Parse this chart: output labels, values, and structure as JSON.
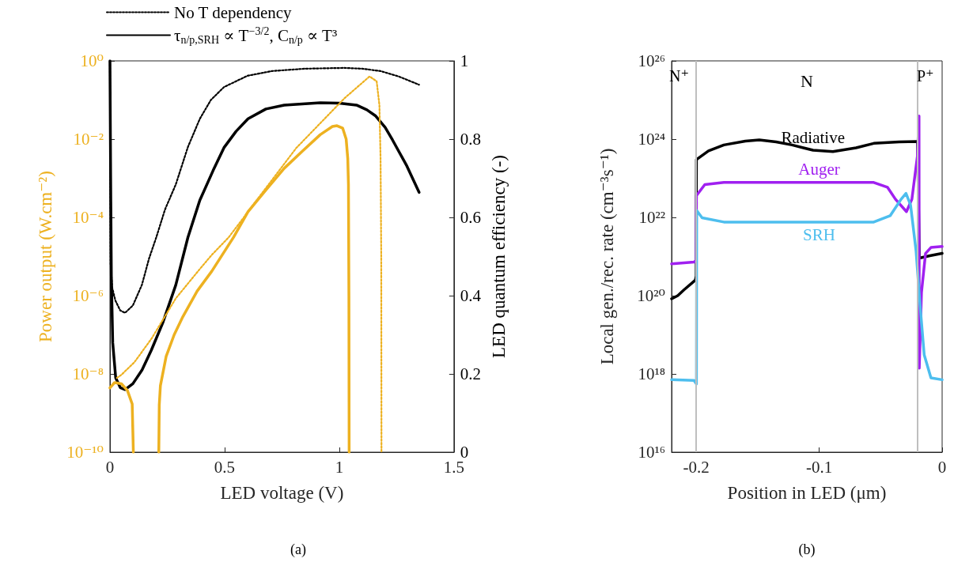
{
  "chart_data": [
    {
      "type": "line",
      "xlabel": "LED voltage (V)",
      "ylabel": "Power output (W.cm⁻²)",
      "y2label": "LED quantum efficiency (-)",
      "xlim": [
        0,
        1.5
      ],
      "xticks": [
        0,
        0.5,
        1,
        1.5
      ],
      "ylim": [
        1e-10,
        1
      ],
      "yticks": [
        {
          "value": 1e-10,
          "label": "10⁻¹⁰"
        },
        {
          "value": 1e-08,
          "label": "10⁻⁸"
        },
        {
          "value": 1e-06,
          "label": "10⁻⁶"
        },
        {
          "value": 0.0001,
          "label": "10⁻⁴"
        },
        {
          "value": 0.01,
          "label": "10⁻²"
        },
        {
          "value": 1,
          "label": "10⁰"
        }
      ],
      "log": "y",
      "y2lim": [
        0,
        1
      ],
      "y2ticks": [
        0,
        0.2,
        0.4,
        0.6,
        0.8,
        1
      ],
      "legend": "top left",
      "marker": "none",
      "annotations": [
        "(a)"
      ],
      "series": [
        {
          "name": "No T dependency",
          "color": "#000000",
          "axis": "y2",
          "line_style": "dotted",
          "x": [
            0,
            0.003,
            0.01,
            0.024,
            0.045,
            0.066,
            0.1,
            0.139,
            0.17,
            0.202,
            0.24,
            0.287,
            0.34,
            0.392,
            0.44,
            0.497,
            0.6,
            0.707,
            0.85,
            1.022,
            1.1,
            1.18,
            1.26,
            1.348
          ],
          "values": [
            1,
            0.48,
            0.42,
            0.387,
            0.362,
            0.356,
            0.375,
            0.427,
            0.494,
            0.549,
            0.62,
            0.684,
            0.78,
            0.852,
            0.9,
            0.933,
            0.962,
            0.974,
            0.98,
            0.982,
            0.98,
            0.974,
            0.96,
            0.939
          ]
        },
        {
          "name": "τ$_{n/p,SRH}$ ∝ T$^{−3/2}$, C$_{n/p}$ ∝ T³",
          "color": "#000000",
          "axis": "y2",
          "line_style": "solid",
          "x": [
            0,
            0.003,
            0.006,
            0.012,
            0.025,
            0.045,
            0.066,
            0.1,
            0.14,
            0.18,
            0.23,
            0.287,
            0.34,
            0.392,
            0.45,
            0.497,
            0.55,
            0.602,
            0.68,
            0.76,
            0.917,
            1.0,
            1.075,
            1.12,
            1.159,
            1.2,
            1.232,
            1.295,
            1.348
          ],
          "values": [
            1,
            0.7,
            0.45,
            0.28,
            0.19,
            0.165,
            0.16,
            0.175,
            0.21,
            0.26,
            0.33,
            0.427,
            0.549,
            0.644,
            0.72,
            0.778,
            0.82,
            0.852,
            0.877,
            0.887,
            0.893,
            0.892,
            0.887,
            0.875,
            0.859,
            0.83,
            0.798,
            0.731,
            0.664
          ]
        },
        {
          "color": "#edb120",
          "line_style": "solid",
          "x": [
            0,
            0.02,
            0.05,
            0.076,
            0.097,
            0.1,
            0.102,
            0.16,
            0.213,
            0.215,
            0.22,
            0.245,
            0.28,
            0.318,
            0.38,
            0.444,
            0.539,
            0.602,
            0.68,
            0.76,
            0.84,
            0.917,
            0.97,
            0.99,
            1.015,
            1.03,
            1.037,
            1.04,
            1.042,
            1.043
          ],
          "values": [
            4.4e-09,
            6e-09,
            5.6e-09,
            3.8e-09,
            1.7e-09,
            3.2e-10,
            1e-10,
            null,
            1e-10,
            1.6e-09,
            5e-09,
            2.8e-08,
            1e-07,
            2.9e-07,
            1.3e-06,
            4.2e-06,
            3.1e-05,
            0.00014,
            0.0005,
            0.0018,
            0.005,
            0.013,
            0.021,
            0.022,
            0.019,
            0.01,
            0.0032,
            0.00069,
            1e-06,
            1e-10
          ]
        },
        {
          "color": "#edb120",
          "line_style": "dotted",
          "x": [
            0.03,
            0.05,
            0.107,
            0.182,
            0.287,
            0.392,
            0.444,
            0.518,
            0.602,
            0.812,
            1.022,
            1.132,
            1.163,
            1.175,
            1.18,
            1.183,
            1.184
          ],
          "values": [
            7.9e-09,
            9.5e-09,
            2e-08,
            8.1e-08,
            8.5e-07,
            4.8e-06,
            1.1e-05,
            3.1e-05,
            0.00014,
            0.0059,
            0.11,
            0.4,
            0.3,
            0.074,
            0.0032,
            1e-05,
            1e-10
          ]
        }
      ]
    },
    {
      "type": "line",
      "xlabel": "Position in LED (μm)",
      "ylabel": "Local gen./rec. rate (cm⁻³s⁻¹)",
      "xlim": [
        -0.22,
        0
      ],
      "xticks": [
        -0.2,
        -0.1,
        0
      ],
      "ylim": [
        1e+16,
        1e+26
      ],
      "yticks": [
        {
          "value": 1e+16,
          "label": "10¹⁶"
        },
        {
          "value": 1e+18,
          "label": "10¹⁸"
        },
        {
          "value": 1e+20,
          "label": "10²⁰"
        },
        {
          "value": 1e+22,
          "label": "10²²"
        },
        {
          "value": 1e+24,
          "label": "10²⁴"
        },
        {
          "value": 1e+26,
          "label": "10²⁶"
        }
      ],
      "log": "y",
      "marker": "none",
      "ref_lines": [
        {
          "axis": "x",
          "value": -0.2,
          "label": "N⁺",
          "color": "#bfbfbf"
        },
        {
          "axis": "x",
          "value": -0.02,
          "label": "P⁺",
          "color": "#bfbfbf"
        }
      ],
      "annotations": [
        "N",
        "(b)"
      ],
      "series": [
        {
          "name": "Radiative",
          "color": "#000000",
          "line_style": "solid",
          "x": [
            -0.22,
            -0.215,
            -0.21,
            -0.2007,
            -0.2,
            -0.1998,
            -0.19,
            -0.1775,
            -0.16,
            -0.1487,
            -0.135,
            -0.122,
            -0.105,
            -0.0888,
            -0.07,
            -0.0556,
            -0.035,
            -0.02,
            -0.0185,
            -0.01,
            0
          ],
          "values": [
            8.3e+19,
            1e+20,
            1.4e+20,
            2.5e+20,
            3.2e+20,
            3e+23,
            5e+23,
            7.1e+23,
            8.9e+23,
            9.5e+23,
            8.5e+23,
            7.1e+23,
            5.2e+23,
            4.8e+23,
            6e+23,
            7.8e+23,
            8.5e+23,
            8.7e+23,
            9.1e+20,
            1.05e+21,
            1.2e+21
          ]
        },
        {
          "name": "Auger",
          "color": "#a020f0",
          "line_style": "solid",
          "x": [
            -0.22,
            -0.2018,
            -0.2,
            -0.1998,
            -0.193,
            -0.1775,
            -0.1,
            -0.0556,
            -0.0445,
            -0.0379,
            -0.029,
            -0.0246,
            -0.0201,
            -0.0188,
            -0.0186,
            -0.0168,
            -0.0135,
            -0.0091,
            0
          ],
          "values": [
            6.5e+20,
            7.2e+20,
            8e+20,
            3.6e+22,
            6.9e+22,
            7.8e+22,
            7.8e+22,
            7.8e+22,
            5.9e+22,
            2.9e+22,
            1.4e+22,
            2.9e+22,
            3.7e+23,
            3.9e+24,
            1.4e+18,
            1.2e+20,
            1.2e+21,
            1.7e+21,
            1.8e+21
          ]
        },
        {
          "name": "SRH",
          "color": "#4dbeee",
          "line_style": "solid",
          "x": [
            -0.22,
            -0.2018,
            -0.1998,
            -0.1996,
            -0.1952,
            -0.1775,
            -0.1,
            -0.0556,
            -0.0423,
            -0.0334,
            -0.0294,
            -0.0257,
            -0.0212,
            -0.0179,
            -0.0146,
            -0.0091,
            0
          ],
          "values": [
            7.1e+17,
            6.8e+17,
            5.5e+17,
            1.5e+22,
            9.8e+21,
            7.6e+21,
            7.6e+21,
            7.6e+21,
            1.1e+22,
            2.9e+22,
            4.1e+22,
            2.1e+22,
            1.4e+21,
            5.5e+19,
            3.1e+18,
            7.9e+17,
            7.1e+17
          ]
        }
      ]
    }
  ]
}
